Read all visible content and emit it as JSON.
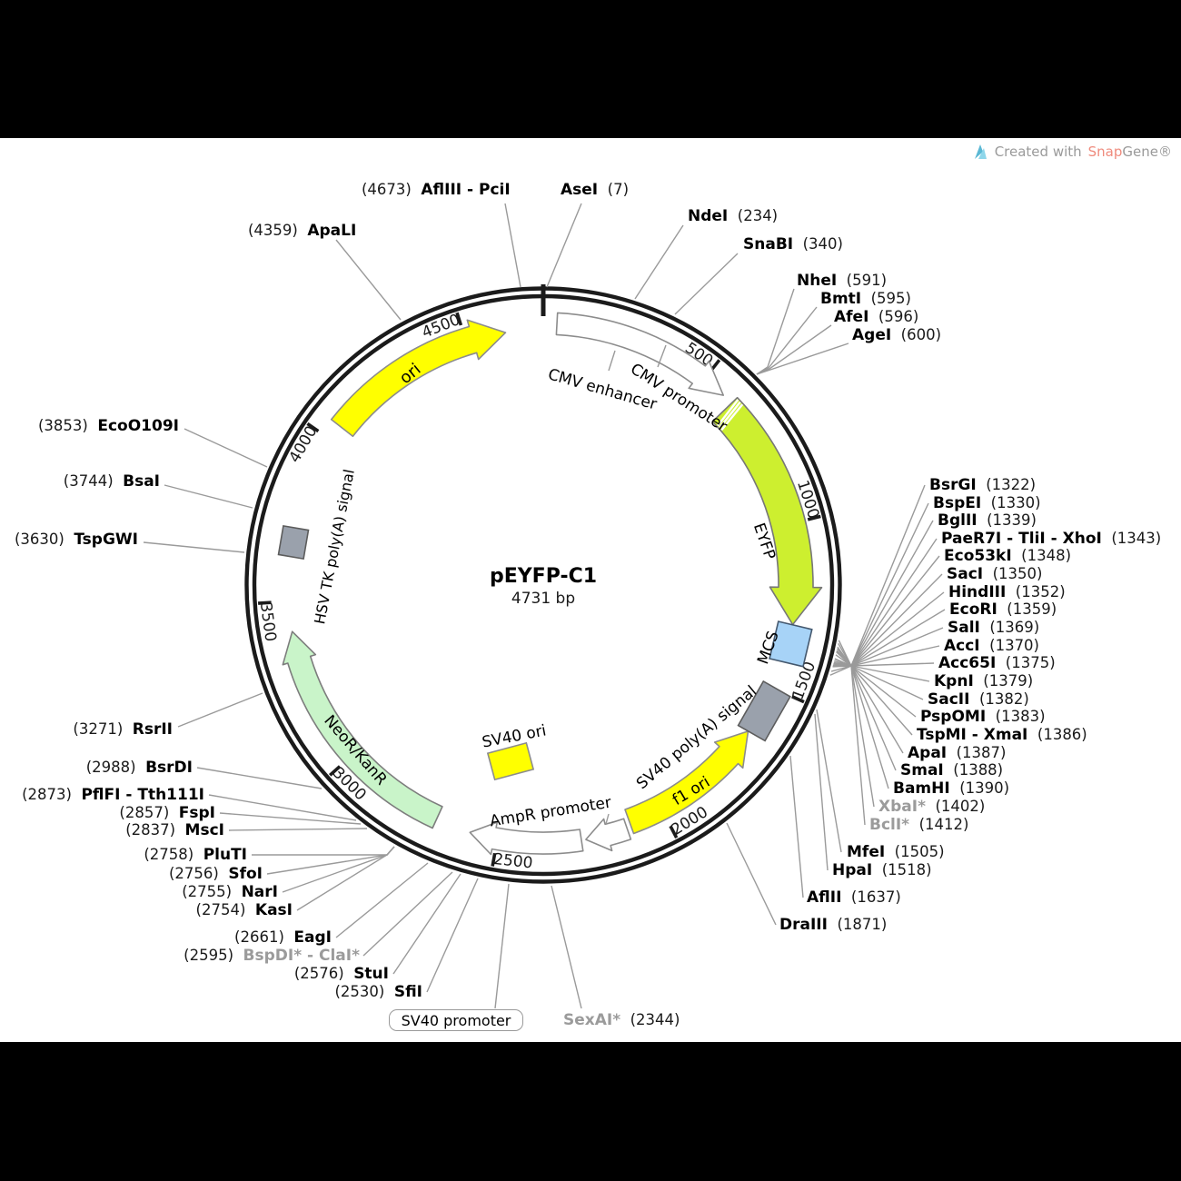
{
  "watermark": {
    "created_with": "Created with",
    "brand_snap": "Snap",
    "brand_gene": "Gene®"
  },
  "plasmid": {
    "name": "pEYFP-C1",
    "size": "4731 bp"
  },
  "tick_labels": [
    "500",
    "1000",
    "1500",
    "2000",
    "2500",
    "3000",
    "3500",
    "4000",
    "4500"
  ],
  "bottom_box": {
    "label": "SV40 promoter"
  },
  "features": [
    {
      "label": "CMV enhancer",
      "kind": "arrow-outline",
      "color": "#ffffff"
    },
    {
      "label": "CMV promoter",
      "kind": "arrow-outline",
      "color": "#ffffff"
    },
    {
      "label": "EYFP",
      "kind": "arrow",
      "color": "#cdef2f"
    },
    {
      "label": "MCS",
      "kind": "box",
      "color": "#a7d3f7"
    },
    {
      "label": "SV40 poly(A) signal",
      "kind": "box",
      "color": "#9aa1ac"
    },
    {
      "label": "f1 ori",
      "kind": "arrow",
      "color": "#ffff00"
    },
    {
      "label": "AmpR promoter",
      "kind": "arrow-outline",
      "color": "#ffffff"
    },
    {
      "label": "SV40 promoter",
      "kind": "arrow-outline",
      "color": "#ffffff"
    },
    {
      "label": "SV40 ori",
      "kind": "box",
      "color": "#ffff00"
    },
    {
      "label": "NeoR/KanR",
      "kind": "arrow",
      "color": "#c9f4c9"
    },
    {
      "label": "HSV TK poly(A) signal",
      "kind": "box",
      "color": "#9aa1ac"
    },
    {
      "label": "ori",
      "kind": "arrow",
      "color": "#ffff00"
    }
  ],
  "sites": [
    {
      "name": "AflIII - PciI",
      "bp": 4673,
      "fmt": "posFirst",
      "gray": false
    },
    {
      "name": "AseI",
      "bp": 7,
      "fmt": "nameFirst",
      "gray": false
    },
    {
      "name": "ApaLI",
      "bp": 4359,
      "fmt": "posFirst",
      "gray": false
    },
    {
      "name": "NdeI",
      "bp": 234,
      "fmt": "nameFirst",
      "gray": false
    },
    {
      "name": "SnaBI",
      "bp": 340,
      "fmt": "nameFirst",
      "gray": false
    },
    {
      "name": "NheI",
      "bp": 591,
      "fmt": "nameFirst",
      "gray": false
    },
    {
      "name": "BmtI",
      "bp": 595,
      "fmt": "nameFirst",
      "gray": false
    },
    {
      "name": "AfeI",
      "bp": 596,
      "fmt": "nameFirst",
      "gray": false
    },
    {
      "name": "AgeI",
      "bp": 600,
      "fmt": "nameFirst",
      "gray": false
    },
    {
      "name": "BsrGI",
      "bp": 1322,
      "fmt": "nameFirst",
      "gray": false
    },
    {
      "name": "BspEI",
      "bp": 1330,
      "fmt": "nameFirst",
      "gray": false
    },
    {
      "name": "BglII",
      "bp": 1339,
      "fmt": "nameFirst",
      "gray": false
    },
    {
      "name": "PaeR7I - TliI - XhoI",
      "bp": 1343,
      "fmt": "nameFirst",
      "gray": false
    },
    {
      "name": "Eco53kI",
      "bp": 1348,
      "fmt": "nameFirst",
      "gray": false
    },
    {
      "name": "SacI",
      "bp": 1350,
      "fmt": "nameFirst",
      "gray": false
    },
    {
      "name": "HindIII",
      "bp": 1352,
      "fmt": "nameFirst",
      "gray": false
    },
    {
      "name": "EcoRI",
      "bp": 1359,
      "fmt": "nameFirst",
      "gray": false
    },
    {
      "name": "SalI",
      "bp": 1369,
      "fmt": "nameFirst",
      "gray": false
    },
    {
      "name": "AccI",
      "bp": 1370,
      "fmt": "nameFirst",
      "gray": false
    },
    {
      "name": "Acc65I",
      "bp": 1375,
      "fmt": "nameFirst",
      "gray": false
    },
    {
      "name": "KpnI",
      "bp": 1379,
      "fmt": "nameFirst",
      "gray": false
    },
    {
      "name": "SacII",
      "bp": 1382,
      "fmt": "nameFirst",
      "gray": false
    },
    {
      "name": "PspOMI",
      "bp": 1383,
      "fmt": "nameFirst",
      "gray": false
    },
    {
      "name": "TspMI - XmaI",
      "bp": 1386,
      "fmt": "nameFirst",
      "gray": false
    },
    {
      "name": "ApaI",
      "bp": 1387,
      "fmt": "nameFirst",
      "gray": false
    },
    {
      "name": "SmaI",
      "bp": 1388,
      "fmt": "nameFirst",
      "gray": false
    },
    {
      "name": "BamHI",
      "bp": 1390,
      "fmt": "nameFirst",
      "gray": false
    },
    {
      "name": "XbaI*",
      "bp": 1402,
      "fmt": "nameFirst",
      "gray": true
    },
    {
      "name": "BclI*",
      "bp": 1412,
      "fmt": "nameFirst",
      "gray": true
    },
    {
      "name": "MfeI",
      "bp": 1505,
      "fmt": "nameFirst",
      "gray": false
    },
    {
      "name": "HpaI",
      "bp": 1518,
      "fmt": "nameFirst",
      "gray": false
    },
    {
      "name": "AflII",
      "bp": 1637,
      "fmt": "nameFirst",
      "gray": false
    },
    {
      "name": "DraIII",
      "bp": 1871,
      "fmt": "nameFirst",
      "gray": false
    },
    {
      "name": "SexAI*",
      "bp": 2344,
      "fmt": "nameFirst",
      "gray": true
    },
    {
      "name": "SfiI",
      "bp": 2530,
      "fmt": "posFirst",
      "gray": false
    },
    {
      "name": "StuI",
      "bp": 2576,
      "fmt": "posFirst",
      "gray": false
    },
    {
      "name": "BspDI* - ClaI*",
      "bp": 2595,
      "fmt": "posFirst",
      "gray": true
    },
    {
      "name": "EagI",
      "bp": 2661,
      "fmt": "posFirst",
      "gray": false
    },
    {
      "name": "KasI",
      "bp": 2754,
      "fmt": "posFirst",
      "gray": false
    },
    {
      "name": "NarI",
      "bp": 2755,
      "fmt": "posFirst",
      "gray": false
    },
    {
      "name": "SfoI",
      "bp": 2756,
      "fmt": "posFirst",
      "gray": false
    },
    {
      "name": "PluTI",
      "bp": 2758,
      "fmt": "posFirst",
      "gray": false
    },
    {
      "name": "MscI",
      "bp": 2837,
      "fmt": "posFirst",
      "gray": false
    },
    {
      "name": "FspI",
      "bp": 2857,
      "fmt": "posFirst",
      "gray": false
    },
    {
      "name": "PflFI - Tth111I",
      "bp": 2873,
      "fmt": "posFirst",
      "gray": false
    },
    {
      "name": "BsrDI",
      "bp": 2988,
      "fmt": "posFirst",
      "gray": false
    },
    {
      "name": "RsrII",
      "bp": 3271,
      "fmt": "posFirst",
      "gray": false
    },
    {
      "name": "TspGWI",
      "bp": 3630,
      "fmt": "posFirst",
      "gray": false
    },
    {
      "name": "BsaI",
      "bp": 3744,
      "fmt": "posFirst",
      "gray": false
    },
    {
      "name": "EcoO109I",
      "bp": 3853,
      "fmt": "posFirst",
      "gray": false
    }
  ]
}
